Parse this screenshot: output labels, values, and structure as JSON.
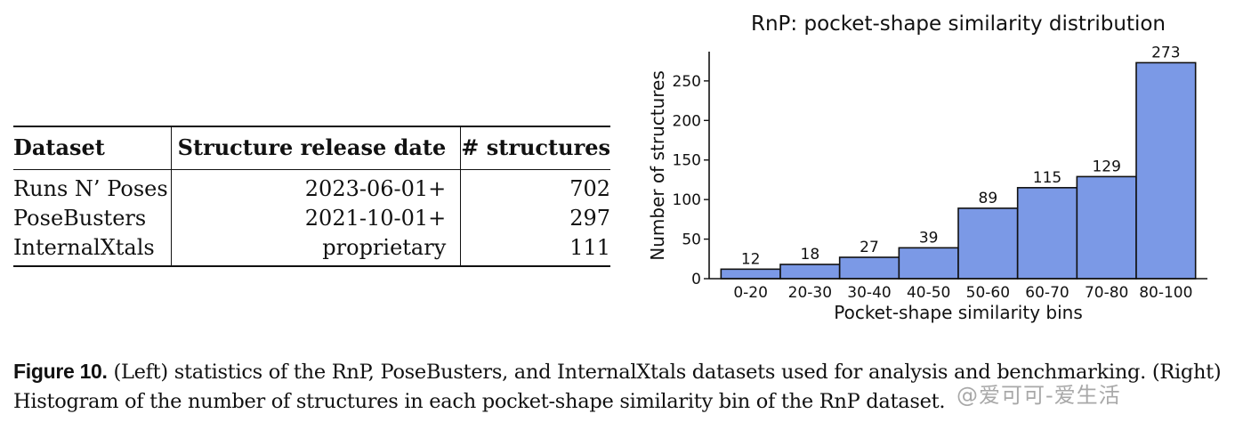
{
  "table": {
    "headers": [
      "Dataset",
      "Structure release date",
      "# structures"
    ],
    "rows": [
      [
        "Runs N’ Poses",
        "2023-06-01+",
        "702"
      ],
      [
        "PoseBusters",
        "2021-10-01+",
        "297"
      ],
      [
        "InternalXtals",
        "proprietary",
        "111"
      ]
    ]
  },
  "chart_data": {
    "type": "bar",
    "title": "RnP: pocket-shape similarity distribution",
    "xlabel": "Pocket-shape similarity bins",
    "ylabel": "Number of structures",
    "categories": [
      "0-20",
      "20-30",
      "30-40",
      "40-50",
      "50-60",
      "60-70",
      "70-80",
      "80-100"
    ],
    "values": [
      12,
      18,
      27,
      39,
      89,
      115,
      129,
      273
    ],
    "yticks": [
      0,
      50,
      100,
      150,
      200,
      250
    ],
    "ylim": [
      0,
      287
    ],
    "bar_color": "#7b99e6",
    "edge_color": "#111111",
    "grid": false,
    "data_labels": true
  },
  "caption": {
    "label": "Figure 10.",
    "text": " (Left) statistics of the RnP, PoseBusters, and InternalXtals datasets used for analysis and benchmarking. (Right) Histogram of the number of structures in each pocket-shape similarity bin of the RnP dataset."
  },
  "watermark": "@爱可可-爱生活"
}
